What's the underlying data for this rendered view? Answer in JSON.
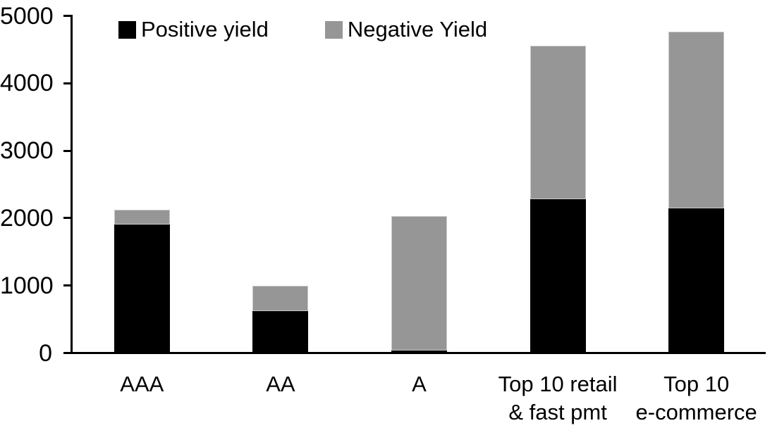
{
  "chart_data": {
    "type": "bar",
    "stacked": true,
    "title": "",
    "categories": [
      "AAA",
      "AA",
      "A",
      "Top 10 retail\n& fast pmt",
      "Top 10\ne-commerce"
    ],
    "series": [
      {
        "name": "Positive yield",
        "color": "#000000",
        "values": [
          1900,
          620,
          40,
          2280,
          2150
        ]
      },
      {
        "name": "Negative Yield",
        "color": "#969696",
        "values": [
          220,
          380,
          1990,
          2280,
          2610
        ]
      }
    ],
    "totals": [
      2120,
      1000,
      2030,
      4560,
      4760
    ],
    "xlabel": "",
    "ylabel": "",
    "ylim": [
      0,
      5000
    ],
    "ytick_labels": [
      "0",
      "1000",
      "2000",
      "3000",
      "4000",
      "5000"
    ],
    "grid": false,
    "legend_position": "top"
  },
  "colors": {
    "positive": "#000000",
    "negative": "#969696",
    "axis": "#000000",
    "background": "#ffffff"
  }
}
